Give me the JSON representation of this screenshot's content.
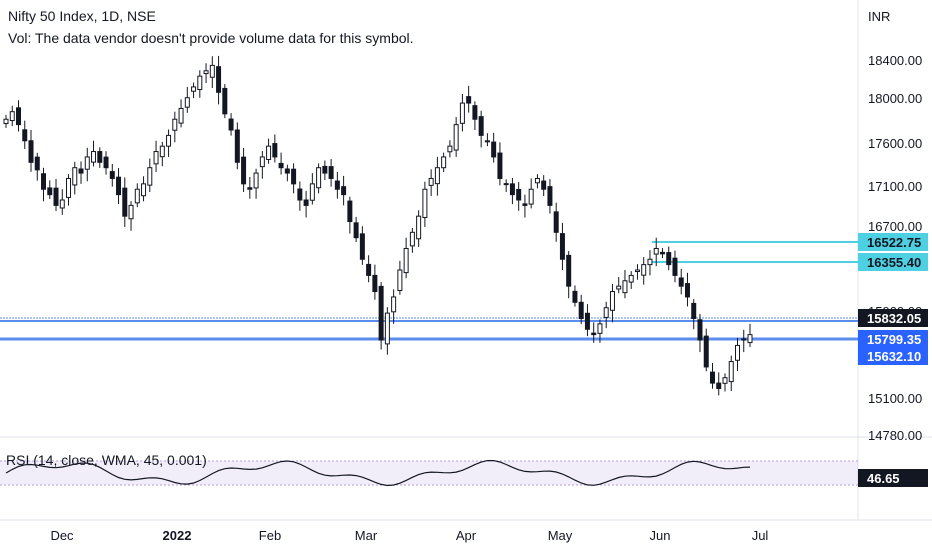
{
  "header": {
    "title": "Nifty 50 Index, 1D, NSE",
    "volume_note": "Vol: The data vendor doesn't provide volume data for this symbol.",
    "currency": "INR"
  },
  "colors": {
    "candle": "#131722",
    "support_line": "#5b8def",
    "cyan_line": "#4dd0e1",
    "price_badge": "#131722",
    "blue_badge": "#2962ff",
    "cyan_badge": "#4dd0e1",
    "rsi_band": "#7e57c2",
    "axis_text": "#131722"
  },
  "chart_data": [
    {
      "type": "candlestick",
      "title": "",
      "symbol": "Nifty 50 Index",
      "interval": "1D",
      "exchange": "NSE",
      "y_ticks": [
        "18400.00",
        "18000.00",
        "17600.00",
        "17100.00",
        "16700.00",
        "15900.00",
        "15100.00",
        "14780.00"
      ],
      "x_ticks": [
        "Dec",
        "2022",
        "Feb",
        "Mar",
        "Apr",
        "May",
        "Jun",
        "Jul"
      ],
      "price_labels": [
        {
          "value": "16522.75",
          "style": "cyan"
        },
        {
          "value": "16355.40",
          "style": "cyan"
        },
        {
          "value": "15832.05",
          "style": "dark"
        },
        {
          "value": "15799.35",
          "style": "blue"
        },
        {
          "value": "15632.10",
          "style": "blue"
        }
      ],
      "horizontal_lines": [
        16522.75,
        16355.4,
        15832.05,
        15799.35,
        15632.1
      ]
    },
    {
      "type": "line",
      "title": "RSI (14, close, WMA, 45, 0.001)",
      "current_value": "46.65",
      "band_upper": 70,
      "band_lower": 30
    }
  ]
}
